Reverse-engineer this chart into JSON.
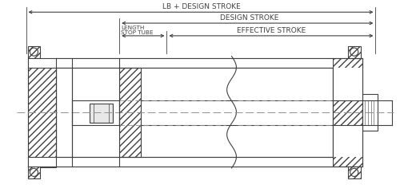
{
  "bg_color": "#ffffff",
  "line_color": "#404040",
  "dash_color": "#909090",
  "lw": 0.8,
  "fig_w": 5.0,
  "fig_h": 2.41,
  "title_text": "LB + DESIGN STROKE",
  "dim1_text": "DESIGN STROKE",
  "dim2a_text": "STOP TUBE",
  "dim2b_text": "LENGTH",
  "dim3_text": "EFFECTIVE STROKE"
}
